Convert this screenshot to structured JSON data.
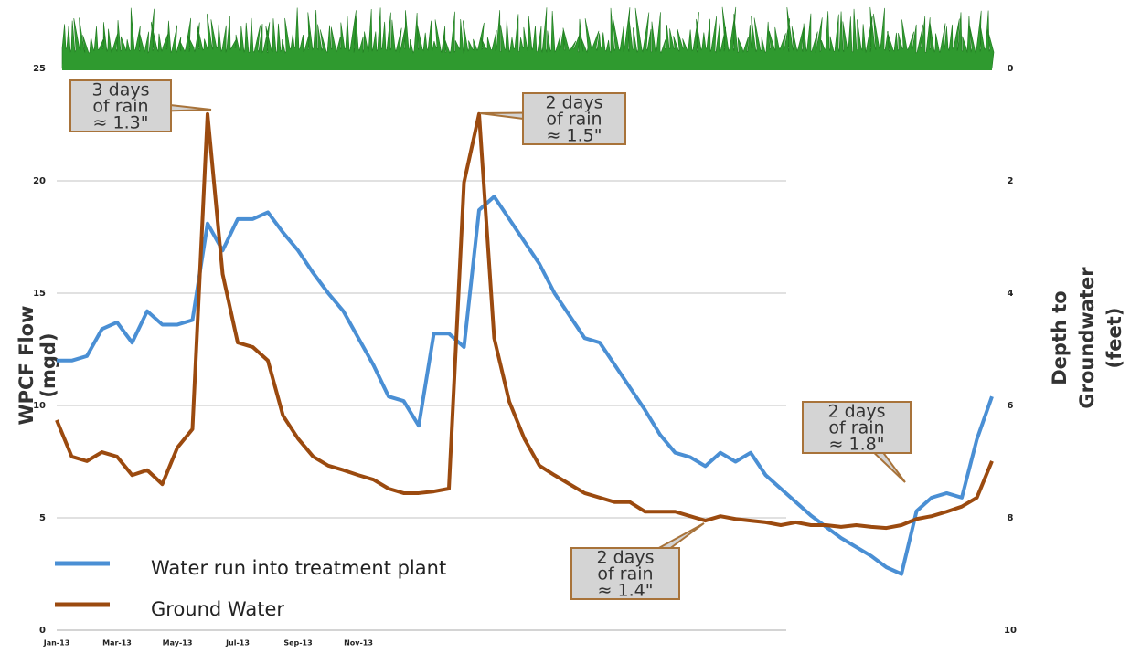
{
  "chart_data": {
    "type": "line",
    "y_title": [
      "WPCF Flow",
      "(mgd)"
    ],
    "y2_title": [
      "Depth to",
      "Groundwater",
      "(feet)"
    ],
    "categories": [
      "Jan-13",
      null,
      null,
      null,
      "Mar-13",
      null,
      null,
      null,
      "May-13",
      null,
      null,
      null,
      "Jul-13",
      null,
      null,
      null,
      "Sep-13",
      null,
      null,
      null,
      "Nov-13",
      null,
      null,
      null,
      null,
      null,
      null,
      null,
      null,
      null,
      null,
      null,
      null,
      null,
      null,
      null,
      null,
      null,
      null,
      null,
      null,
      null,
      null,
      null,
      null,
      null,
      null,
      null,
      null,
      null,
      null,
      null,
      null,
      null,
      null,
      null,
      null,
      null,
      null,
      null,
      null,
      null,
      null
    ],
    "ylim": [
      0,
      25
    ],
    "yticks": [
      0,
      5,
      10,
      15,
      20,
      25
    ],
    "y2lim": [
      10,
      0
    ],
    "y2ticks": [
      0,
      2,
      4,
      6,
      8,
      10
    ],
    "grid": true,
    "legend": "lower left",
    "series": [
      {
        "name": "Water run into treatment plant",
        "color": "#4a8fd4",
        "values": [
          12.0,
          12.0,
          12.2,
          13.4,
          13.7,
          12.8,
          14.2,
          13.6,
          13.6,
          13.8,
          18.1,
          16.9,
          18.3,
          18.3,
          18.6,
          17.7,
          16.9,
          15.9,
          15.0,
          14.2,
          13.0,
          11.8,
          10.4,
          10.2,
          9.1,
          13.2,
          13.2,
          12.6,
          18.7,
          19.3,
          18.3,
          17.3,
          16.3,
          15.0,
          14.0,
          13.0,
          12.8,
          11.8,
          10.8,
          9.8,
          8.7,
          7.9,
          7.7,
          7.3,
          7.9,
          7.5,
          7.9,
          6.9,
          6.3,
          5.7,
          5.1,
          4.6,
          4.1,
          3.7,
          3.3,
          2.8,
          2.5,
          5.3,
          5.9,
          6.1,
          5.9,
          8.5,
          10.4
        ]
      },
      {
        "name": "Ground Water",
        "color": "#9b4a0f",
        "axis": "y2",
        "values": [
          6.26,
          6.91,
          6.99,
          6.83,
          6.91,
          7.24,
          7.15,
          7.4,
          6.75,
          6.42,
          0.81,
          3.66,
          4.88,
          4.96,
          5.2,
          6.18,
          6.59,
          6.91,
          7.07,
          7.15,
          7.24,
          7.32,
          7.48,
          7.56,
          7.56,
          7.53,
          7.48,
          2.03,
          0.81,
          4.8,
          5.93,
          6.59,
          7.07,
          7.24,
          7.4,
          7.56,
          7.64,
          7.72,
          7.72,
          7.89,
          7.89,
          7.89,
          7.97,
          8.05,
          7.97,
          8.02,
          8.05,
          8.08,
          8.13,
          8.08,
          8.13,
          8.13,
          8.16,
          8.13,
          8.16,
          8.18,
          8.13,
          8.02,
          7.97,
          7.89,
          7.8,
          7.64,
          6.99
        ]
      }
    ],
    "annotations": [
      {
        "lines": [
          "3 days",
          "of rain",
          "≈ 1.3\""
        ]
      },
      {
        "lines": [
          "2 days",
          "of rain",
          "≈ 1.5\""
        ]
      },
      {
        "lines": [
          "2 days",
          "of rain",
          "≈ 1.4\""
        ]
      },
      {
        "lines": [
          "2 days",
          "of rain",
          "≈ 1.8\""
        ]
      }
    ]
  }
}
